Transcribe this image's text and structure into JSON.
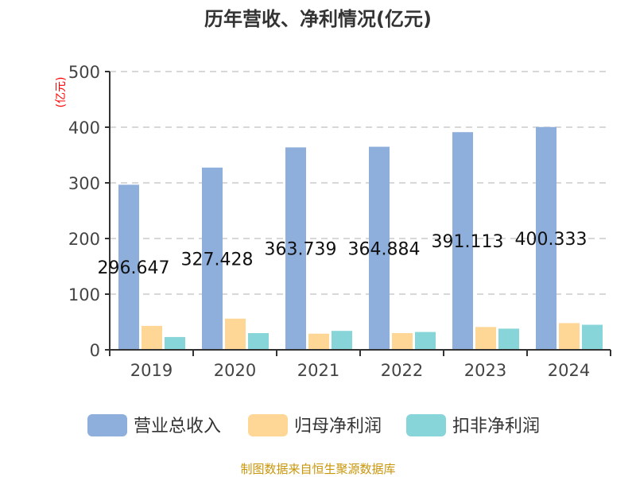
{
  "chart_data": {
    "type": "bar",
    "title": "历年营收、净利情况(亿元)",
    "ylabel": "(亿元)",
    "ylim": [
      0,
      500
    ],
    "yticks": [
      0,
      100,
      200,
      300,
      400,
      500
    ],
    "grid": true,
    "legend_position": "bottom",
    "categories": [
      "2019",
      "2020",
      "2021",
      "2022",
      "2023",
      "2024"
    ],
    "series": [
      {
        "name": "营业总收入",
        "color": "#8eaedb",
        "values": [
          296.647,
          327.428,
          363.739,
          364.884,
          391.113,
          400.333
        ],
        "labels": [
          "296.647",
          "327.428",
          "363.739",
          "364.884",
          "391.113",
          "400.333"
        ]
      },
      {
        "name": "归母净利润",
        "color": "#fed797",
        "values": [
          43,
          56,
          29,
          30,
          41,
          48
        ]
      },
      {
        "name": "扣非净利润",
        "color": "#87d5d8",
        "values": [
          23,
          30,
          34,
          32,
          38,
          45
        ]
      }
    ]
  },
  "footer": "制图数据来自恒生聚源数据库"
}
